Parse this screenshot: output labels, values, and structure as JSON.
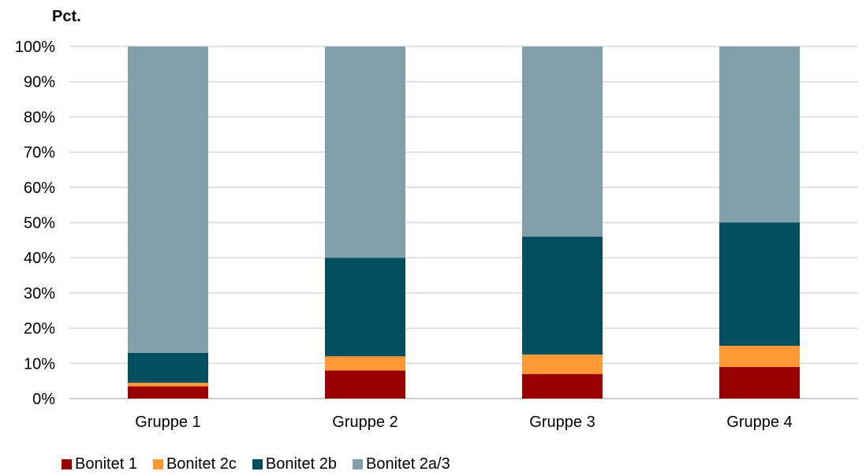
{
  "chart_data": {
    "type": "bar",
    "stacked": true,
    "ylabel": "Pct.",
    "ylim": [
      0,
      100
    ],
    "y_ticks": [
      "0%",
      "10%",
      "20%",
      "30%",
      "40%",
      "50%",
      "60%",
      "70%",
      "80%",
      "90%",
      "100%"
    ],
    "categories": [
      "Gruppe 1",
      "Gruppe 2",
      "Gruppe 3",
      "Gruppe 4"
    ],
    "series": [
      {
        "name": "Bonitet 1",
        "color": "#990000",
        "values": [
          3.5,
          8.0,
          7.0,
          9.0
        ]
      },
      {
        "name": "Bonitet 2c",
        "color": "#FF9933",
        "values": [
          1.0,
          4.0,
          5.5,
          6.0
        ]
      },
      {
        "name": "Bonitet 2b",
        "color": "#014F5E",
        "values": [
          8.5,
          28.0,
          33.5,
          35.0
        ]
      },
      {
        "name": "Bonitet 2a/3",
        "color": "#82A0A9",
        "values": [
          87.0,
          60.0,
          54.0,
          50.0
        ]
      }
    ],
    "grid": true,
    "legend_position": "bottom-left"
  }
}
